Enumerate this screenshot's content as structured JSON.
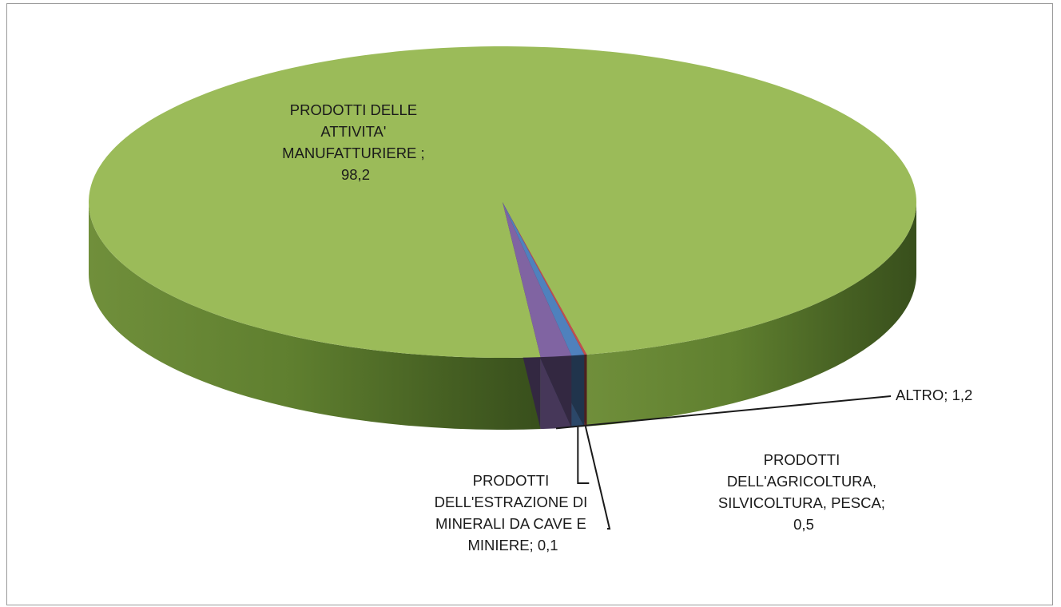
{
  "chart_data": {
    "type": "pie",
    "style": "3d-pie",
    "title": "",
    "legend": "none",
    "slices": [
      {
        "label_lines": [
          "PRODOTTI DELLE",
          "ATTIVITA'",
          "MANUFATTURIERE ;",
          "98,2"
        ],
        "name": "PRODOTTI DELLE ATTIVITA' MANUFATTURIERE",
        "value": 98.2,
        "color": "#9bbb59"
      },
      {
        "label_lines": [
          "PRODOTTI",
          "DELL'ESTRAZIONE DI",
          "MINERALI DA CAVE E",
          "MINIERE; 0,1"
        ],
        "name": "PRODOTTI DELL'ESTRAZIONE DI MINERALI DA CAVE E MINIERE",
        "value": 0.1,
        "color": "#c0504d"
      },
      {
        "label_lines": [
          "PRODOTTI",
          "DELL'AGRICOLTURA,",
          "SILVICOLTURA, PESCA;",
          "0,5"
        ],
        "name": "PRODOTTI DELL'AGRICOLTURA, SILVICOLTURA, PESCA",
        "value": 0.5,
        "color": "#4f81bd"
      },
      {
        "label_lines": [
          "ALTRO; 1,2"
        ],
        "name": "ALTRO",
        "value": 1.2,
        "color": "#8064a2"
      }
    ]
  }
}
